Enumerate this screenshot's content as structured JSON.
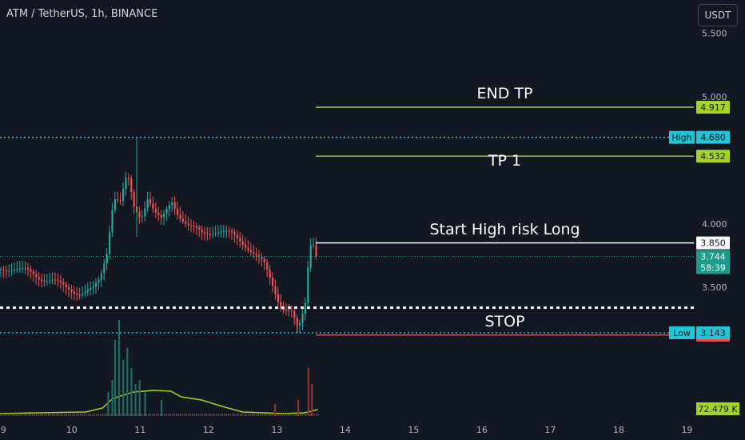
{
  "header": {
    "title": "ATM / TetherUS, 1h, BINANCE",
    "currency_button": "USDT"
  },
  "colors": {
    "background": "#131722",
    "up": "#26a69a",
    "down": "#ef5350",
    "target": "#a5d426",
    "dotted": "#20c5d6",
    "white": "#ffffff",
    "axis_text": "#b2b5be",
    "current": "#1e9a8c"
  },
  "chart_data": {
    "type": "candlestick",
    "symbol": "ATM / TetherUS, 1h, BINANCE",
    "x_ticks": [
      "9",
      "10",
      "11",
      "12",
      "13",
      "14",
      "15",
      "16",
      "17",
      "18",
      "19"
    ],
    "x_range": [
      8.95,
      19.1
    ],
    "y_range": [
      2.3,
      5.76
    ],
    "y_ticks": [
      "3.500",
      "4.000",
      "5.000",
      "5.500"
    ],
    "annotations": [
      {
        "label": "END TP",
        "price": 4.917,
        "color": "#a5d426",
        "x_start": 13.57
      },
      {
        "label": "TP 1",
        "price": 4.532,
        "color": "#a5d426",
        "x_start": 13.57
      },
      {
        "label": "Start High risk Long",
        "price": 3.85,
        "color": "#ffffff",
        "x_start": 13.57
      },
      {
        "label": "STOP",
        "price": 3.125,
        "color": "#ef5350",
        "x_start": 13.57
      }
    ],
    "white_dotted_line": {
      "price": 3.34
    },
    "high": {
      "label": "High",
      "value": "4.680"
    },
    "low": {
      "label": "Low",
      "value": "3.143"
    },
    "price_tags": [
      {
        "value": "4.917",
        "price": 4.917,
        "bg": "#a5d426",
        "fg": "#131722"
      },
      {
        "value": "4.532",
        "price": 4.532,
        "bg": "#a5d426",
        "fg": "#131722"
      },
      {
        "value": "3.850",
        "price": 3.85,
        "bg": "#ffffff",
        "fg": "#131722"
      },
      {
        "value": "3.125",
        "price": 3.125,
        "bg": "#ef5350",
        "fg": "#ffffff"
      }
    ],
    "current_price": {
      "value": "3.744",
      "countdown": "58:39",
      "price": 3.744
    },
    "volume": {
      "value": "72.479 K"
    },
    "price_path": [
      [
        8.95,
        3.64
      ],
      [
        9.1,
        3.66
      ],
      [
        9.3,
        3.63
      ],
      [
        9.5,
        3.58
      ],
      [
        9.7,
        3.56
      ],
      [
        9.9,
        3.49
      ],
      [
        10.1,
        3.46
      ],
      [
        10.3,
        3.48
      ],
      [
        10.4,
        3.56
      ],
      [
        10.5,
        3.78
      ],
      [
        10.6,
        4.22
      ],
      [
        10.7,
        4.18
      ],
      [
        10.8,
        4.38
      ],
      [
        10.9,
        4.12
      ],
      [
        11.0,
        4.05
      ],
      [
        11.1,
        4.22
      ],
      [
        11.2,
        4.09
      ],
      [
        11.3,
        4.02
      ],
      [
        11.45,
        4.18
      ],
      [
        11.55,
        4.08
      ],
      [
        11.7,
        3.98
      ],
      [
        11.9,
        3.92
      ],
      [
        12.1,
        3.95
      ],
      [
        12.3,
        3.92
      ],
      [
        12.5,
        3.85
      ],
      [
        12.6,
        3.8
      ],
      [
        12.8,
        3.68
      ],
      [
        12.95,
        3.48
      ],
      [
        13.05,
        3.35
      ],
      [
        13.2,
        3.31
      ],
      [
        13.3,
        3.15
      ],
      [
        13.4,
        3.35
      ],
      [
        13.45,
        3.72
      ],
      [
        13.5,
        3.92
      ],
      [
        13.55,
        3.78
      ],
      [
        13.58,
        3.744
      ]
    ],
    "volume_bars": [
      [
        10.52,
        30
      ],
      [
        10.58,
        45
      ],
      [
        10.62,
        95
      ],
      [
        10.68,
        120
      ],
      [
        10.74,
        70
      ],
      [
        10.8,
        85
      ],
      [
        10.86,
        60
      ],
      [
        10.92,
        40
      ],
      [
        10.98,
        45
      ],
      [
        11.06,
        30
      ],
      [
        11.3,
        20
      ],
      [
        12.96,
        15
      ],
      [
        13.3,
        20
      ],
      [
        13.45,
        60
      ],
      [
        13.5,
        40
      ]
    ],
    "volume_ma": [
      [
        8.95,
        3
      ],
      [
        9.5,
        4
      ],
      [
        10.2,
        5
      ],
      [
        10.45,
        10
      ],
      [
        10.6,
        22
      ],
      [
        10.9,
        30
      ],
      [
        11.2,
        32
      ],
      [
        11.45,
        31
      ],
      [
        11.6,
        24
      ],
      [
        11.9,
        20
      ],
      [
        12.2,
        12
      ],
      [
        12.5,
        5
      ],
      [
        13.1,
        3
      ],
      [
        13.4,
        4
      ],
      [
        13.6,
        8
      ]
    ]
  }
}
